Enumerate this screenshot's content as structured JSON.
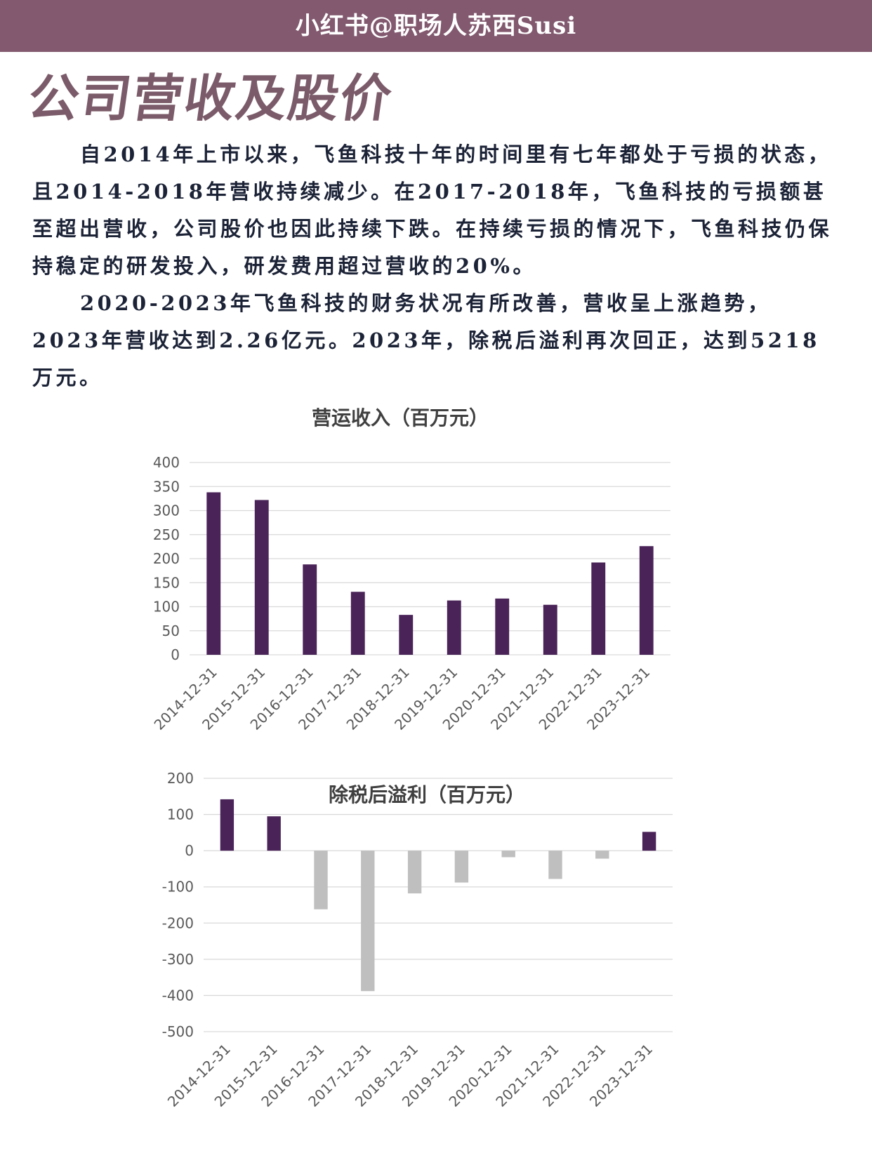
{
  "header": {
    "banner_text": "小红书@职场人苏西Susi"
  },
  "page": {
    "title": "公司营收及股价",
    "paragraph_1": "自2014年上市以来，飞鱼科技十年的时间里有七年都处于亏损的状态，且2014-2018年营收持续减少。在2017-2018年，飞鱼科技的亏损额甚至超出营收，公司股价也因此持续下跌。在持续亏损的情况下，飞鱼科技仍保持稳定的研发投入，研发费用超过营收的20%。",
    "paragraph_2": "2020-2023年飞鱼科技的财务状况有所改善，营收呈上涨趋势，2023年营收达到2.26亿元。2023年，除税后溢利再次回正，达到5218万元。"
  },
  "colors": {
    "banner": "#82596f",
    "title": "#7b5b69",
    "body_text": "#1c2337",
    "bar_positive": "#4a2358",
    "bar_negative": "#bfbfbf",
    "grid": "#d9d9d9",
    "axis_text": "#595959"
  },
  "chart_data": [
    {
      "type": "bar",
      "title": "营运收入（百万元）",
      "categories": [
        "2014-12-31",
        "2015-12-31",
        "2016-12-31",
        "2017-12-31",
        "2018-12-31",
        "2019-12-31",
        "2020-12-31",
        "2021-12-31",
        "2022-12-31",
        "2023-12-31"
      ],
      "values": [
        338,
        322,
        188,
        131,
        83,
        113,
        117,
        104,
        192,
        226
      ],
      "ylim": [
        0,
        400
      ],
      "yticks": [
        0,
        50,
        100,
        150,
        200,
        250,
        300,
        350,
        400
      ],
      "xlabel": "",
      "ylabel": "",
      "grid": true,
      "legend": "none"
    },
    {
      "type": "bar",
      "title": "除税后溢利（百万元）",
      "categories": [
        "2014-12-31",
        "2015-12-31",
        "2016-12-31",
        "2017-12-31",
        "2018-12-31",
        "2019-12-31",
        "2020-12-31",
        "2021-12-31",
        "2022-12-31",
        "2023-12-31"
      ],
      "values": [
        142,
        95,
        -162,
        -388,
        -118,
        -88,
        -18,
        -78,
        -22,
        52
      ],
      "ylim": [
        -500,
        200
      ],
      "yticks": [
        -500,
        -400,
        -300,
        -200,
        -100,
        0,
        100,
        200
      ],
      "xlabel": "",
      "ylabel": "",
      "grid": true,
      "legend": "none"
    }
  ]
}
